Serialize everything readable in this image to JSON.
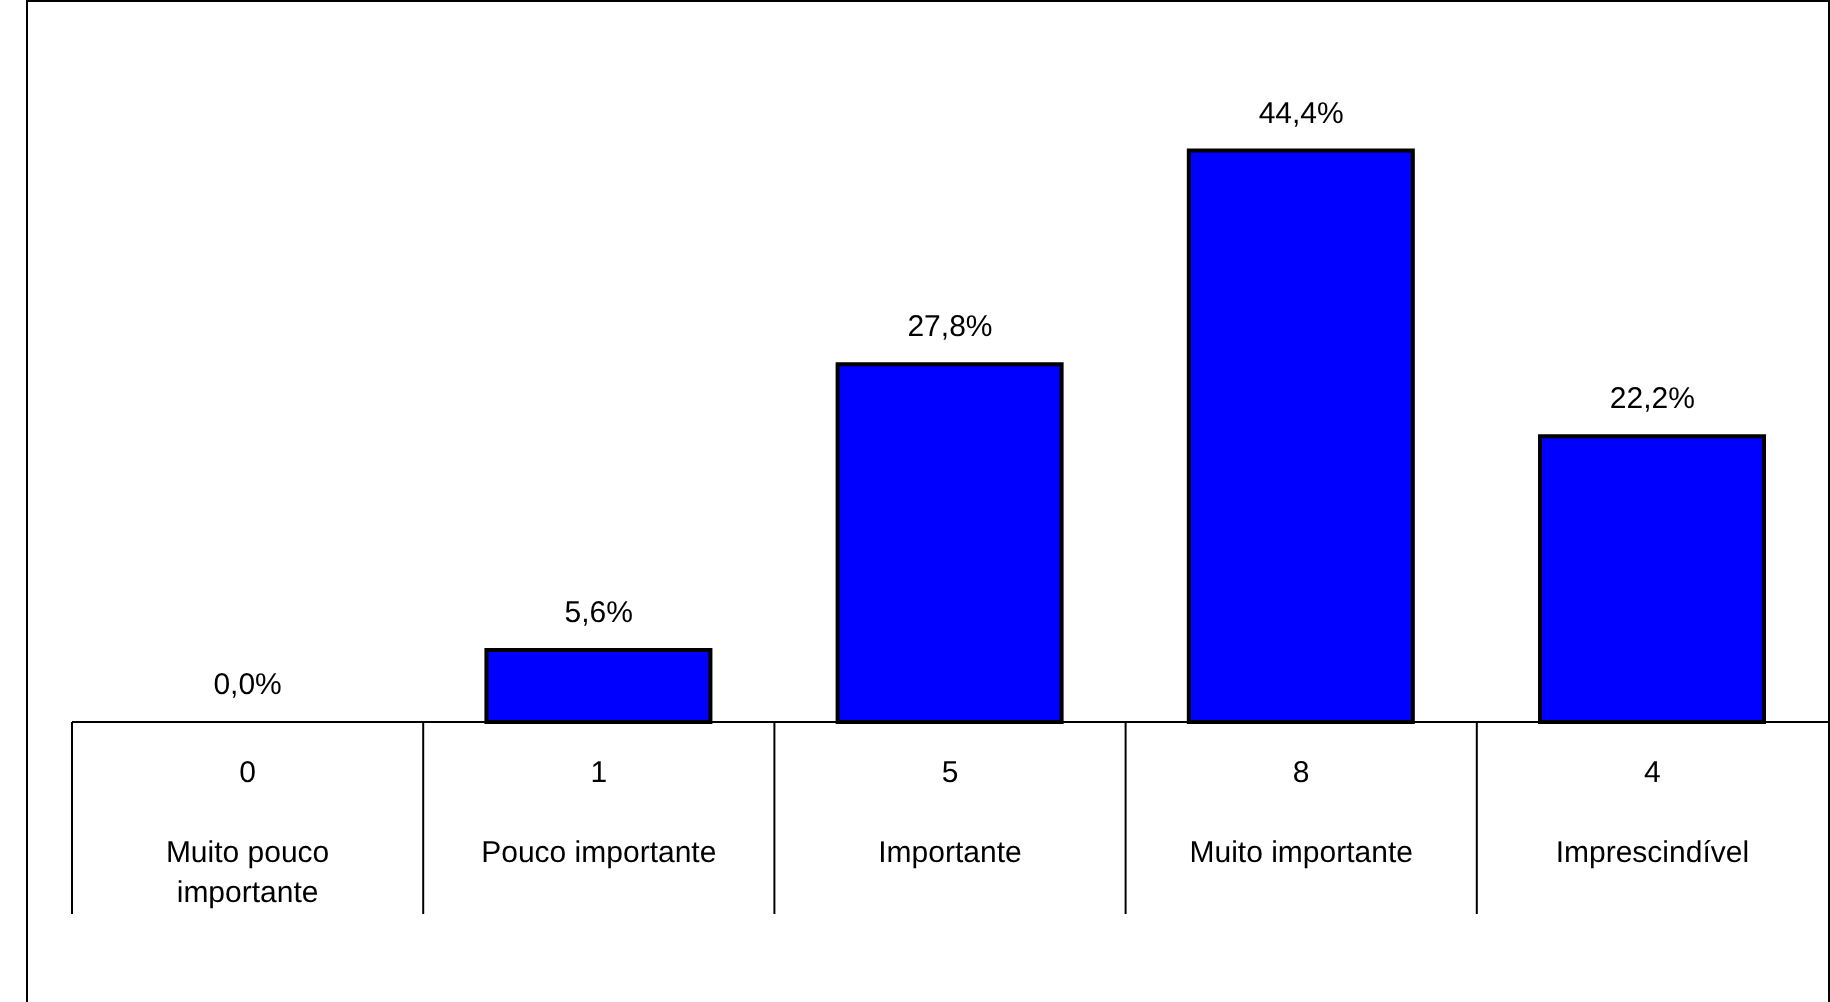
{
  "chart_data": {
    "type": "bar",
    "categories": [
      "Muito pouco importante",
      "Pouco importante",
      "Importante",
      "Muito importante",
      "Imprescindível"
    ],
    "values": [
      0,
      5.6,
      27.8,
      44.4,
      22.2
    ],
    "value_labels": [
      "0,0%",
      "5,6%",
      "27,8%",
      "44,4%",
      "22,2%"
    ],
    "color": "#0000ff",
    "annotations": [
      "0",
      "1",
      "5",
      "8",
      "4"
    ],
    "grid": false,
    "legend": false
  }
}
